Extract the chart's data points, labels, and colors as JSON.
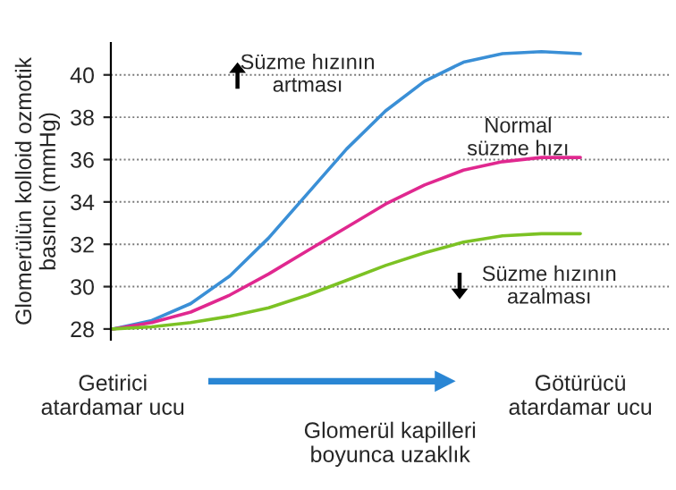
{
  "chart_data": {
    "type": "line",
    "xlabel": "Glomerül kapilleri\nboyunca uzaklık",
    "ylabel": "Glomerülün kolloid ozmotik\nbasıncı (mmHg)",
    "categories": [
      "Getirici\natardamar ucu",
      null,
      null,
      null,
      null,
      null,
      null,
      null,
      null,
      null,
      null,
      null,
      "Götürücü\natardamar ucu"
    ],
    "series": [
      {
        "color": "#3a8fd6",
        "values": [
          28,
          28.4,
          29.2,
          30.5,
          32.3,
          34.4,
          36.5,
          38.3,
          39.7,
          40.6,
          41.0,
          41.1,
          41.0
        ]
      },
      {
        "color": "#e0288f",
        "values": [
          28,
          28.3,
          28.8,
          29.6,
          30.6,
          31.7,
          32.8,
          33.9,
          34.8,
          35.5,
          35.9,
          36.1,
          36.1
        ]
      },
      {
        "color": "#7cc224",
        "values": [
          28,
          28.1,
          28.3,
          28.6,
          29.0,
          29.6,
          30.3,
          31.0,
          31.6,
          32.1,
          32.4,
          32.5,
          32.5
        ]
      }
    ],
    "ylim": [
      27.5,
      41.5
    ],
    "yticks": [
      28,
      30,
      32,
      34,
      36,
      38,
      40
    ],
    "grid": "y",
    "marker": "none",
    "line_style": "solid",
    "annotations": [
      "Süzme hızının\nartması",
      "Normal\nsüzme hızı",
      "Süzme hızının\nazalması"
    ]
  }
}
